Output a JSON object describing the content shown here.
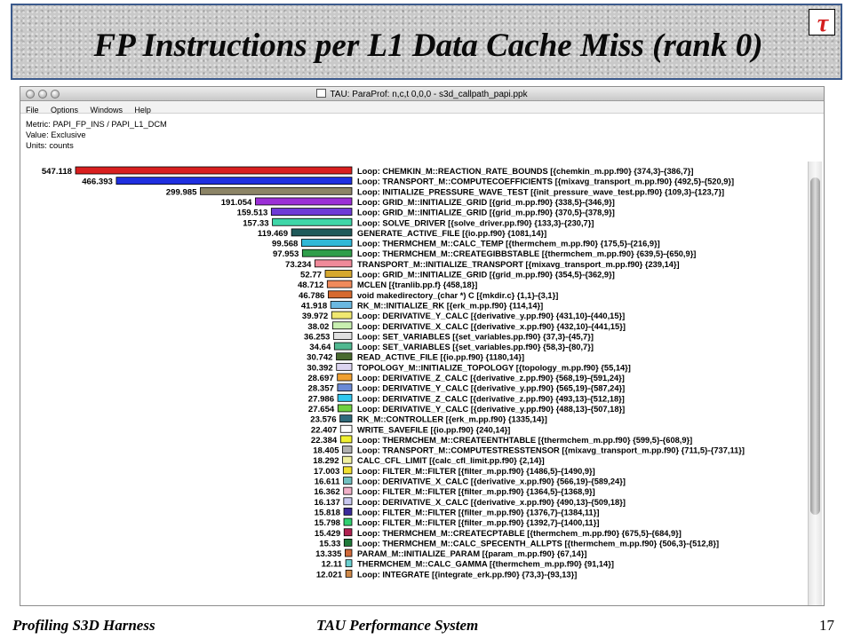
{
  "slide": {
    "title": "FP Instructions per L1 Data Cache Miss (rank 0)",
    "footer_left": "Profiling S3D Harness",
    "footer_center": "TAU Performance System",
    "page_number": "17",
    "logo_text": "τ"
  },
  "window": {
    "title": "TAU: ParaProf: n,c,t 0,0,0 - s3d_callpath_papi.ppk",
    "menu": [
      "File",
      "Options",
      "Windows",
      "Help"
    ],
    "metric_line": "Metric: PAPI_FP_INS / PAPI_L1_DCM",
    "value_line": "Value: Exclusive",
    "units_line": "Units: counts"
  },
  "chart_data": {
    "type": "bar",
    "orientation": "horizontal",
    "values": [
      547.118,
      466.393,
      299.985,
      191.054,
      159.513,
      157.33,
      119.469,
      99.568,
      97.953,
      73.234,
      52.77,
      48.712,
      46.786,
      41.918,
      39.972,
      38.02,
      36.253,
      34.64,
      30.742,
      30.392,
      28.697,
      28.357,
      27.986,
      27.654,
      23.576,
      22.407,
      22.384,
      18.405,
      18.292,
      17.003,
      16.611,
      16.362,
      16.137,
      15.818,
      15.798,
      15.429,
      15.33,
      13.335,
      12.11,
      12.021
    ],
    "categories": [
      "Loop: CHEMKIN_M::REACTION_RATE_BOUNDS [{chemkin_m.pp.f90} {374,3}-{386,7}]",
      "Loop: TRANSPORT_M::COMPUTECOEFFICIENTS [{mixavg_transport_m.pp.f90} {492,5}-{520,9}]",
      "Loop: INITIALIZE_PRESSURE_WAVE_TEST [{init_pressure_wave_test.pp.f90} {109,3}-{123,7}]",
      "Loop: GRID_M::INITIALIZE_GRID [{grid_m.pp.f90} {338,5}-{346,9}]",
      "Loop: GRID_M::INITIALIZE_GRID [{grid_m.pp.f90} {370,5}-{378,9}]",
      "Loop: SOLVE_DRIVER [{solve_driver.pp.f90} {133,3}-{230,7}]",
      "GENERATE_ACTIVE_FILE [{io.pp.f90} {1081,14}]",
      "Loop: THERMCHEM_M::CALC_TEMP [{thermchem_m.pp.f90} {175,5}-{216,9}]",
      "Loop: THERMCHEM_M::CREATEGIBBSTABLE [{thermchem_m.pp.f90} {639,5}-{650,9}]",
      "TRANSPORT_M::INITIALIZE_TRANSPORT [{mixavg_transport_m.pp.f90} {239,14}]",
      "Loop: GRID_M::INITIALIZE_GRID [{grid_m.pp.f90} {354,5}-{362,9}]",
      "MCLEN [{tranlib.pp.f} {458,18}]",
      "void makedirectory_(char *) C [{mkdir.c} {1,1}-{3,1}]",
      "RK_M::INITIALIZE_RK [{erk_m.pp.f90} {114,14}]",
      "Loop: DERIVATIVE_Y_CALC [{derivative_y.pp.f90} {431,10}-{440,15}]",
      "Loop: DERIVATIVE_X_CALC [{derivative_x.pp.f90} {432,10}-{441,15}]",
      "Loop: SET_VARIABLES [{set_variables.pp.f90} {37,3}-{45,7}]",
      "Loop: SET_VARIABLES [{set_variables.pp.f90} {58,3}-{80,7}]",
      "READ_ACTIVE_FILE [{io.pp.f90} {1180,14}]",
      "TOPOLOGY_M::INITIALIZE_TOPOLOGY [{topology_m.pp.f90} {55,14}]",
      "Loop: DERIVATIVE_Z_CALC [{derivative_z.pp.f90} {568,19}-{591,24}]",
      "Loop: DERIVATIVE_Y_CALC [{derivative_y.pp.f90} {565,19}-{587,24}]",
      "Loop: DERIVATIVE_Z_CALC [{derivative_z.pp.f90} {493,13}-{512,18}]",
      "Loop: DERIVATIVE_Y_CALC [{derivative_y.pp.f90} {488,13}-{507,18}]",
      "RK_M::CONTROLLER [{erk_m.pp.f90} {1335,14}]",
      "WRITE_SAVEFILE [{io.pp.f90} {240,14}]",
      "Loop: THERMCHEM_M::CREATEENTHTABLE [{thermchem_m.pp.f90} {599,5}-{608,9}]",
      "Loop: TRANSPORT_M::COMPUTESTRESSTENSOR [{mixavg_transport_m.pp.f90} {711,5}-{737,11}]",
      "CALC_CFL_LIMIT [{calc_cfl_limit.pp.f90} {2,14}]",
      "Loop: FILTER_M::FILTER [{filter_m.pp.f90} {1486,5}-{1490,9}]",
      "Loop: DERIVATIVE_X_CALC [{derivative_x.pp.f90} {566,19}-{589,24}]",
      "Loop: FILTER_M::FILTER [{filter_m.pp.f90} {1364,5}-{1368,9}]",
      "Loop: DERIVATIVE_X_CALC [{derivative_x.pp.f90} {490,13}-{509,18}]",
      "Loop: FILTER_M::FILTER [{filter_m.pp.f90} {1376,7}-{1384,11}]",
      "Loop: FILTER_M::FILTER [{filter_m.pp.f90} {1392,7}-{1400,11}]",
      "Loop: THERMCHEM_M::CREATECPTABLE [{thermchem_m.pp.f90} {675,5}-{684,9}]",
      "Loop: THERMCHEM_M::CALC_SPECENTH_ALLPTS [{thermchem_m.pp.f90} {506,3}-{512,8}]",
      "PARAM_M::INITIALIZE_PARAM [{param_m.pp.f90} {67,14}]",
      "THERMCHEM_M::CALC_GAMMA [{thermchem_m.pp.f90} {91,14}]",
      "Loop: INTEGRATE [{integrate_erk.pp.f90} {73,3}-{93,13}]"
    ],
    "colors": [
      "#d91f1f",
      "#1f2fe0",
      "#8c8466",
      "#9b2fd6",
      "#6e3ad6",
      "#3fd6a8",
      "#1f5a5a",
      "#2fb8d6",
      "#2f9e4a",
      "#f08a9a",
      "#d6a82f",
      "#f08a5a",
      "#d66a2f",
      "#6ab8e0",
      "#f0e870",
      "#c8f0b0",
      "#e0e0e0",
      "#50b890",
      "#4a6a2f",
      "#dcd4f0",
      "#f0a030",
      "#6a8ad6",
      "#30c8f0",
      "#70d040",
      "#2f6a7a",
      "#ffffff",
      "#f0f030",
      "#b0b0b0",
      "#f0f0a0",
      "#f0e030",
      "#70c0c0",
      "#f0b0c8",
      "#c8c8f0",
      "#3a2a9a",
      "#30d070",
      "#b02050",
      "#1f7a3a",
      "#d06a3a",
      "#6ad0d0",
      "#d08a4a"
    ]
  }
}
